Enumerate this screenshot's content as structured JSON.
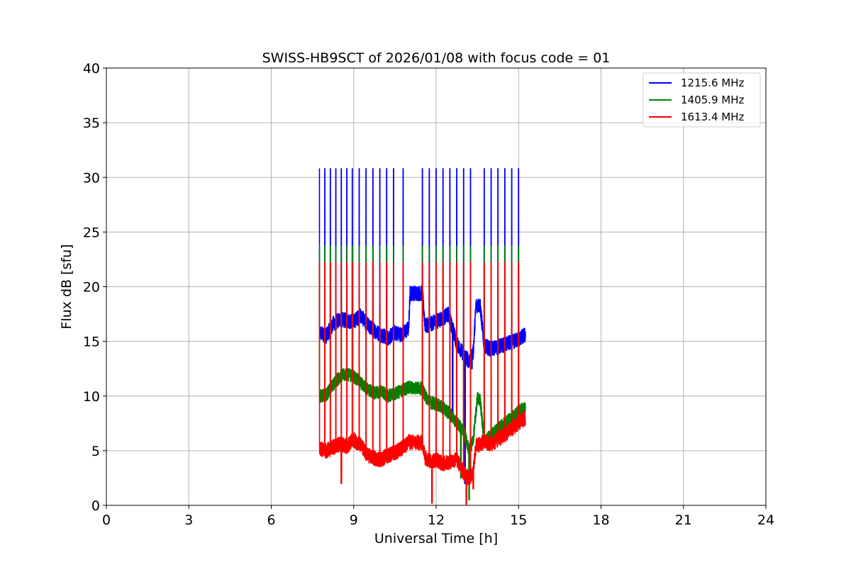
{
  "chart_data": {
    "type": "line",
    "title": "SWISS-HB9SCT of 2026/01/08 with focus code = 01",
    "xlabel": "Universal Time [h]",
    "ylabel": "Flux dB [sfu]",
    "xlim": [
      0,
      24
    ],
    "ylim": [
      0,
      40
    ],
    "xticks": [
      0,
      3,
      6,
      9,
      12,
      15,
      18,
      21,
      24
    ],
    "yticks": [
      0,
      5,
      10,
      15,
      20,
      25,
      30,
      35,
      40
    ],
    "xtick_labels": [
      "0",
      "3",
      "6",
      "9",
      "12",
      "15",
      "18",
      "21",
      "24"
    ],
    "ytick_labels": [
      "0",
      "5",
      "10",
      "15",
      "20",
      "25",
      "30",
      "35",
      "40"
    ],
    "grid": true,
    "legend_position": "top-right",
    "series": [
      {
        "name": "1215.6 MHz",
        "color": "#0000ff",
        "base": [
          [
            7.75,
            15.8
          ],
          [
            8.0,
            15.5
          ],
          [
            8.25,
            16.6
          ],
          [
            8.5,
            17.0
          ],
          [
            8.75,
            16.9
          ],
          [
            9.0,
            16.8
          ],
          [
            9.25,
            17.4
          ],
          [
            9.5,
            16.5
          ],
          [
            9.75,
            16.0
          ],
          [
            10.0,
            15.6
          ],
          [
            10.25,
            15.3
          ],
          [
            10.5,
            15.8
          ],
          [
            10.75,
            15.6
          ],
          [
            11.0,
            16.2
          ],
          [
            11.05,
            19.4
          ],
          [
            11.5,
            19.4
          ],
          [
            11.6,
            16.4
          ],
          [
            11.8,
            16.6
          ],
          [
            12.0,
            16.8
          ],
          [
            12.3,
            17.2
          ],
          [
            12.45,
            17.5
          ],
          [
            12.6,
            16.2
          ],
          [
            12.75,
            14.8
          ],
          [
            13.0,
            13.8
          ],
          [
            13.2,
            13.2
          ],
          [
            13.35,
            14.0
          ],
          [
            13.45,
            18.3
          ],
          [
            13.6,
            18.3
          ],
          [
            13.75,
            14.6
          ],
          [
            14.0,
            14.3
          ],
          [
            14.25,
            14.5
          ],
          [
            14.5,
            14.7
          ],
          [
            14.75,
            14.9
          ],
          [
            15.0,
            15.2
          ],
          [
            15.25,
            15.6
          ]
        ],
        "noise": 0.7,
        "spikes": [
          7.75,
          7.95,
          8.15,
          8.35,
          8.55,
          8.75,
          8.95,
          9.2,
          9.45,
          9.7,
          9.95,
          10.2,
          10.45,
          10.8,
          11.5,
          11.75,
          12.0,
          12.25,
          12.5,
          12.75,
          13.0,
          13.25,
          13.75,
          14.0,
          14.25,
          14.5,
          14.75,
          15.0
        ],
        "spike_peak": 30.8,
        "dips": [
          [
            12.6,
            8.5
          ],
          [
            13.05,
            2.0
          ],
          [
            13.3,
            12.5
          ]
        ]
      },
      {
        "name": "1405.9 MHz",
        "color": "#008000",
        "base": [
          [
            7.75,
            10.0
          ],
          [
            8.0,
            10.1
          ],
          [
            8.25,
            11.0
          ],
          [
            8.5,
            11.8
          ],
          [
            8.75,
            12.0
          ],
          [
            9.0,
            11.8
          ],
          [
            9.25,
            11.2
          ],
          [
            9.5,
            10.6
          ],
          [
            9.75,
            10.3
          ],
          [
            10.0,
            10.4
          ],
          [
            10.25,
            10.0
          ],
          [
            10.5,
            10.2
          ],
          [
            10.75,
            10.5
          ],
          [
            11.0,
            10.8
          ],
          [
            11.5,
            10.7
          ],
          [
            11.6,
            10.0
          ],
          [
            11.8,
            9.4
          ],
          [
            12.0,
            9.3
          ],
          [
            12.25,
            8.9
          ],
          [
            12.5,
            8.4
          ],
          [
            12.75,
            7.6
          ],
          [
            13.0,
            6.8
          ],
          [
            13.2,
            5.0
          ],
          [
            13.35,
            6.0
          ],
          [
            13.5,
            9.8
          ],
          [
            13.6,
            9.7
          ],
          [
            13.75,
            5.8
          ],
          [
            14.0,
            6.4
          ],
          [
            14.25,
            7.0
          ],
          [
            14.5,
            7.5
          ],
          [
            14.75,
            8.0
          ],
          [
            15.0,
            8.6
          ],
          [
            15.25,
            8.9
          ]
        ],
        "noise": 0.6,
        "spikes": [
          7.75,
          7.95,
          8.15,
          8.35,
          8.55,
          8.75,
          8.95,
          9.2,
          9.45,
          9.7,
          9.95,
          10.2,
          10.45,
          10.8,
          11.5,
          11.75,
          12.0,
          12.25,
          12.5,
          12.75,
          13.0,
          13.25,
          13.75,
          14.0,
          14.25,
          14.5,
          14.75,
          15.0
        ],
        "spike_peak": 23.7,
        "dips": [
          [
            12.9,
            2.5
          ],
          [
            13.2,
            0.5
          ]
        ]
      },
      {
        "name": "1613.4 MHz",
        "color": "#ff0000",
        "base": [
          [
            7.75,
            5.2
          ],
          [
            8.0,
            5.0
          ],
          [
            8.25,
            5.3
          ],
          [
            8.5,
            5.6
          ],
          [
            8.75,
            5.4
          ],
          [
            9.0,
            6.0
          ],
          [
            9.25,
            5.5
          ],
          [
            9.5,
            4.6
          ],
          [
            9.75,
            4.3
          ],
          [
            10.0,
            4.2
          ],
          [
            10.25,
            4.6
          ],
          [
            10.5,
            4.8
          ],
          [
            10.75,
            5.2
          ],
          [
            11.0,
            5.8
          ],
          [
            11.5,
            5.7
          ],
          [
            11.6,
            4.4
          ],
          [
            11.8,
            4.0
          ],
          [
            12.0,
            4.2
          ],
          [
            12.25,
            3.8
          ],
          [
            12.5,
            4.0
          ],
          [
            12.75,
            4.2
          ],
          [
            13.0,
            3.0
          ],
          [
            13.2,
            2.4
          ],
          [
            13.35,
            3.0
          ],
          [
            13.45,
            5.5
          ],
          [
            13.6,
            5.6
          ],
          [
            13.75,
            5.8
          ],
          [
            14.0,
            5.6
          ],
          [
            14.25,
            6.0
          ],
          [
            14.5,
            6.5
          ],
          [
            14.75,
            7.0
          ],
          [
            15.0,
            7.5
          ],
          [
            15.25,
            8.0
          ]
        ],
        "noise": 0.7,
        "spikes": [
          7.75,
          7.95,
          8.15,
          8.35,
          8.55,
          8.75,
          8.95,
          9.2,
          9.45,
          9.7,
          9.95,
          10.2,
          10.45,
          10.8,
          11.5,
          11.75,
          12.0,
          12.25,
          12.5,
          12.75,
          13.0,
          13.25,
          13.75,
          14.0,
          14.25,
          14.5,
          14.75,
          15.0
        ],
        "spike_peak": 22.2,
        "dips": [
          [
            8.55,
            2.0
          ],
          [
            11.85,
            0.2
          ],
          [
            13.1,
            0.1
          ],
          [
            13.35,
            1.5
          ]
        ]
      }
    ]
  }
}
